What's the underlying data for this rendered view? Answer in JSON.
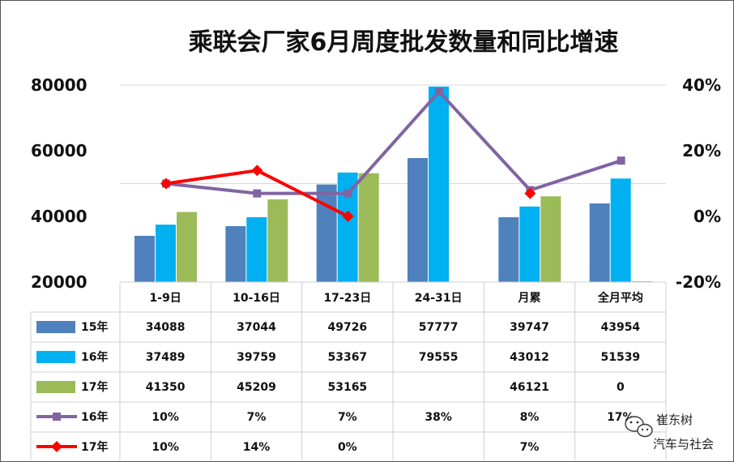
{
  "chart_data": {
    "type": "bar",
    "title": "乘联会厂家6月周度批发数量和同比增速",
    "categories": [
      "1-9日",
      "10-16日",
      "17-23日",
      "24-31日",
      "月累",
      "全月平均"
    ],
    "y_ticks": [
      "80000",
      "60000",
      "40000",
      "20000"
    ],
    "y2_ticks": [
      "40%",
      "20%",
      "0%",
      "-20%"
    ],
    "ylim": [
      20000,
      80000
    ],
    "y2lim": [
      -20,
      40
    ],
    "series": [
      {
        "name": "15年",
        "type": "bar",
        "color": "#4F81BD",
        "values": [
          34088,
          37044,
          49726,
          57777,
          39747,
          43954
        ],
        "labels": [
          "34088",
          "37044",
          "49726",
          "57777",
          "39747",
          "43954"
        ]
      },
      {
        "name": "16年",
        "type": "bar",
        "color": "#00B0F0",
        "values": [
          37489,
          39759,
          53367,
          79555,
          43012,
          51539
        ],
        "labels": [
          "37489",
          "39759",
          "53367",
          "79555",
          "43012",
          "51539"
        ]
      },
      {
        "name": "17年",
        "type": "bar",
        "color": "#9BBB59",
        "values": [
          41350,
          45209,
          53165,
          null,
          46121,
          0
        ],
        "labels": [
          "41350",
          "45209",
          "53165",
          "",
          "46121",
          "0"
        ]
      },
      {
        "name": "16年",
        "type": "line",
        "color": "#8064A2",
        "marker": "square",
        "values": [
          10,
          7,
          7,
          38,
          8,
          17
        ],
        "labels": [
          "10%",
          "7%",
          "7%",
          "38%",
          "8%",
          "17%"
        ]
      },
      {
        "name": "17年",
        "type": "line",
        "color": "#FF0000",
        "marker": "diamond",
        "values": [
          10,
          14,
          0,
          null,
          7,
          null
        ],
        "labels": [
          "10%",
          "14%",
          "0%",
          "",
          "7%",
          ""
        ]
      }
    ]
  },
  "watermark": {
    "line1": "崔东树",
    "line2": "汽车与社会"
  }
}
